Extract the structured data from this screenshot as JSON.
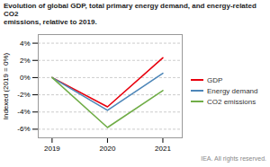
{
  "chart_data": {
    "type": "line",
    "title": "Evolution of global GDP, total primary energy demand, and energy-related CO2",
    "subtitle": "emissions, relative to 2019.",
    "caption": "IEA.  All rights reserved.",
    "ylabel": "Indexed (2019 = 0%)",
    "x": [
      2019,
      2020,
      2021
    ],
    "series": [
      {
        "name": "GDP",
        "color": "#e8000d",
        "values": [
          0,
          -3.4,
          2.3
        ]
      },
      {
        "name": "Energy demand",
        "color": "#4d86b8",
        "values": [
          0,
          -3.8,
          0.5
        ]
      },
      {
        "name": "CO2 emissions",
        "color": "#70ad47",
        "values": [
          0,
          -5.8,
          -1.5
        ]
      }
    ],
    "xlim": [
      2018.75,
      2021.35
    ],
    "xticks": [
      2019,
      2020,
      2021
    ],
    "ylim": [
      -7,
      5
    ],
    "yticks": [
      {
        "value": -6,
        "label": "-6%"
      },
      {
        "value": -4,
        "label": "-4%"
      },
      {
        "value": -2,
        "label": "-2%"
      },
      {
        "value": 0,
        "label": "0%"
      },
      {
        "value": 2,
        "label": "2%"
      },
      {
        "value": 4,
        "label": "4%"
      }
    ],
    "grid": true,
    "legend": "right"
  }
}
